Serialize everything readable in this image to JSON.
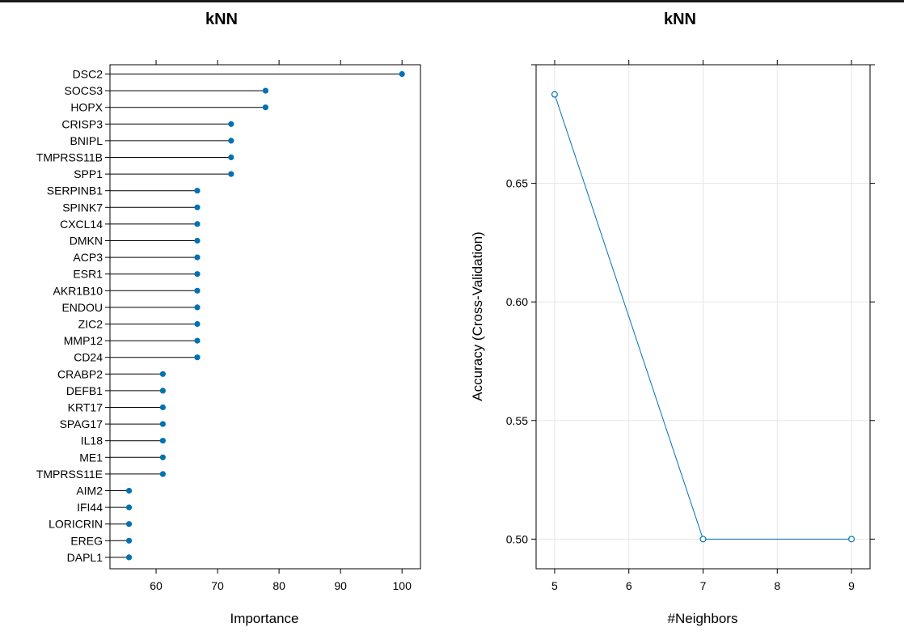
{
  "chart_data": [
    {
      "type": "lollipop",
      "title": "kNN",
      "xlabel": "Importance",
      "ylabel": "",
      "xlim": [
        52.5,
        103
      ],
      "xticks": [
        60,
        70,
        80,
        90,
        100
      ],
      "grid": false,
      "color": "#0072b2",
      "categories": [
        "DSC2",
        "SOCS3",
        "HOPX",
        "CRISP3",
        "BNIPL",
        "TMPRSS11B",
        "SPP1",
        "SERPINB1",
        "SPINK7",
        "CXCL14",
        "DMKN",
        "ACP3",
        "ESR1",
        "AKR1B10",
        "ENDOU",
        "ZIC2",
        "MMP12",
        "CD24",
        "CRABP2",
        "DEFB1",
        "KRT17",
        "SPAG17",
        "IL18",
        "ME1",
        "TMPRSS11E",
        "AIM2",
        "IFI44",
        "LORICRIN",
        "EREG",
        "DAPL1"
      ],
      "values": [
        100,
        77.8,
        77.8,
        72.2,
        72.2,
        72.2,
        72.2,
        66.7,
        66.7,
        66.7,
        66.7,
        66.7,
        66.7,
        66.7,
        66.7,
        66.7,
        66.7,
        66.7,
        61.1,
        61.1,
        61.1,
        61.1,
        61.1,
        61.1,
        61.1,
        55.6,
        55.6,
        55.6,
        55.6,
        55.6
      ]
    },
    {
      "type": "line",
      "title": "kNN",
      "xlabel": "#Neighbors",
      "ylabel": "Accuracy (Cross-Validation)",
      "x": [
        5,
        7,
        9
      ],
      "y": [
        0.6875,
        0.5,
        0.5
      ],
      "xlim": [
        4.75,
        9.25
      ],
      "ylim": [
        0.4875,
        0.7
      ],
      "xticks": [
        5,
        6,
        7,
        8,
        9
      ],
      "yticks": [
        0.5,
        0.55,
        0.6,
        0.65
      ],
      "ytick_labels": [
        "0.50",
        "0.55",
        "0.60",
        "0.65"
      ],
      "grid": true,
      "color": "#0072b2"
    }
  ]
}
